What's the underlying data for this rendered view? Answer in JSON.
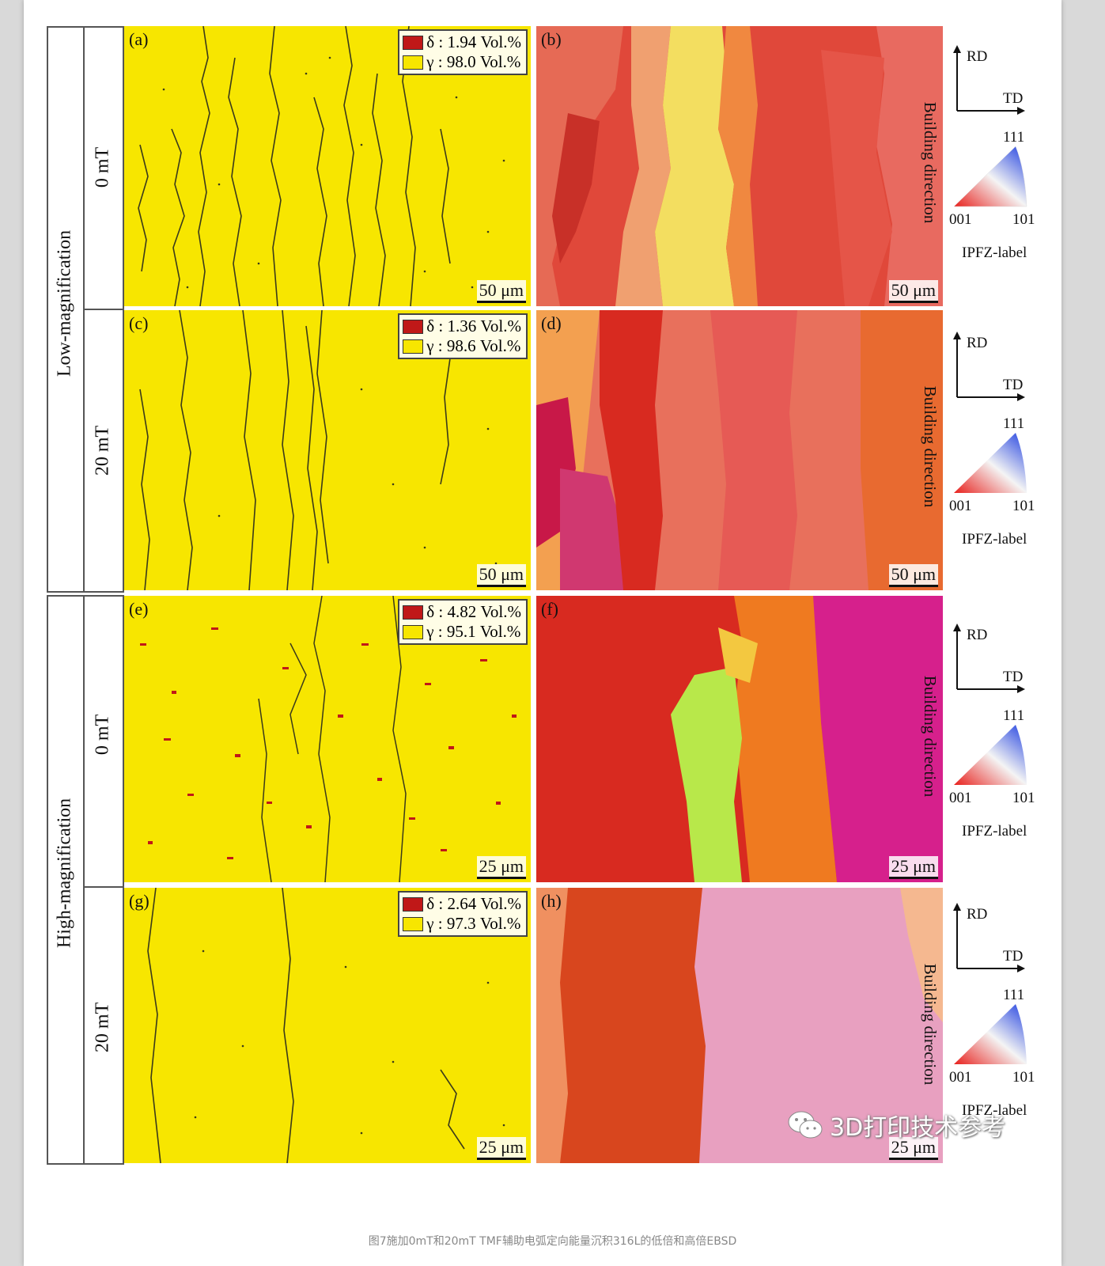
{
  "groups": {
    "low": "Low-magnification",
    "high": "High-magnification"
  },
  "rows": [
    "0 mT",
    "20 mT",
    "0 mT",
    "20 mT"
  ],
  "panels": {
    "a": {
      "label": "(a)",
      "scale": "50 μm",
      "delta": "δ : 1.94 Vol.%",
      "gamma": "γ : 98.0 Vol.%"
    },
    "b": {
      "label": "(b)",
      "scale": "50 μm",
      "direction": "Building direction"
    },
    "c": {
      "label": "(c)",
      "scale": "50 μm",
      "delta": "δ : 1.36 Vol.%",
      "gamma": "γ : 98.6 Vol.%"
    },
    "d": {
      "label": "(d)",
      "scale": "50 μm",
      "direction": "Building direction"
    },
    "e": {
      "label": "(e)",
      "scale": "25 μm",
      "delta": "δ : 4.82 Vol.%",
      "gamma": "γ : 95.1 Vol.%"
    },
    "f": {
      "label": "(f)",
      "scale": "25 μm",
      "direction": "Building direction"
    },
    "g": {
      "label": "(g)",
      "scale": "25 μm",
      "delta": "δ : 2.64 Vol.%",
      "gamma": "γ : 97.3 Vol.%"
    },
    "h": {
      "label": "(h)",
      "scale": "25 μm",
      "direction": "Building direction"
    }
  },
  "key": {
    "rd": "RD",
    "td": "TD",
    "p111": "111",
    "p001": "001",
    "p101": "101",
    "ipf": "IPFZ-label"
  },
  "colors": {
    "gamma": "#f7e600",
    "delta": "#c01818"
  },
  "watermark": "3D打印技术参考",
  "caption": "图7施加0mT和20mT TMF辅助电弧定向能量沉积316L的低倍和高倍EBSD"
}
